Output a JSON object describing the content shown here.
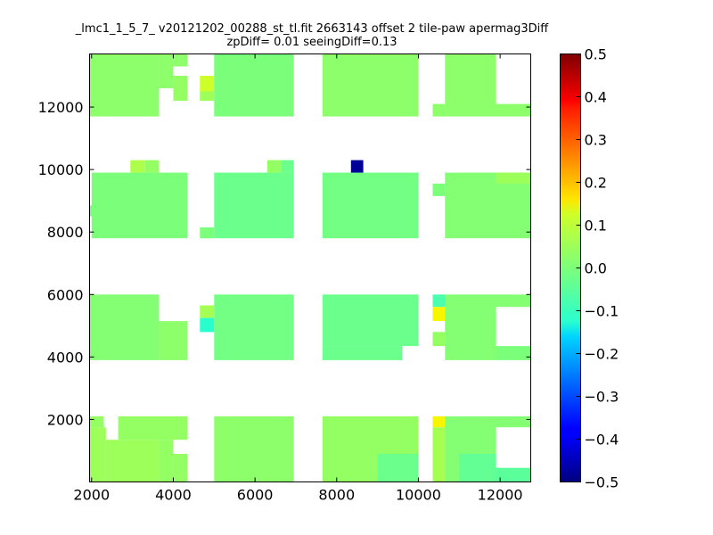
{
  "chart_data": {
    "type": "heatmap",
    "title": "_lmc1_1_5_7_ v20121202_00288_st_tl.fit 2663143 offset 2 tile-paw apermag3Diff",
    "subtitle": "zpDiff= 0.01 seeingDiff=0.13",
    "xlim": [
      1950,
      12750
    ],
    "ylim": [
      0,
      13700
    ],
    "x_ticks": [
      2000,
      4000,
      6000,
      8000,
      10000,
      12000
    ],
    "y_ticks": [
      2000,
      4000,
      6000,
      8000,
      10000,
      12000
    ],
    "colorbar": {
      "min": -0.5,
      "max": 0.5,
      "ticks": [
        "0.5",
        "0.4",
        "0.3",
        "0.2",
        "0.1",
        "0.0",
        "−0.1",
        "−0.2",
        "−0.3",
        "−0.4",
        "−0.5"
      ],
      "colormap": "jet"
    },
    "base_value": 0.0,
    "cells": [
      {
        "x0": 1950,
        "x1": 3650,
        "y0": 11700,
        "y1": 13700,
        "v": 0.02
      },
      {
        "x0": 3650,
        "x1": 4000,
        "y0": 12600,
        "y1": 13700,
        "v": 0.02
      },
      {
        "x0": 4000,
        "x1": 4350,
        "y0": 13300,
        "y1": 13700,
        "v": 0.02
      },
      {
        "x0": 4000,
        "x1": 4350,
        "y0": 12200,
        "y1": 13000,
        "v": 0.03
      },
      {
        "x0": 4650,
        "x1": 5000,
        "y0": 12500,
        "y1": 13000,
        "v": 0.1
      },
      {
        "x0": 4650,
        "x1": 5000,
        "y0": 12200,
        "y1": 12500,
        "v": 0.04
      },
      {
        "x0": 5000,
        "x1": 6950,
        "y0": 11700,
        "y1": 13700,
        "v": 0.0
      },
      {
        "x0": 7650,
        "x1": 10000,
        "y0": 11700,
        "y1": 13700,
        "v": 0.02
      },
      {
        "x0": 10650,
        "x1": 11900,
        "y0": 11700,
        "y1": 13700,
        "v": 0.02
      },
      {
        "x0": 10350,
        "x1": 10650,
        "y0": 11700,
        "y1": 12100,
        "v": 0.02
      },
      {
        "x0": 11900,
        "x1": 12750,
        "y0": 11700,
        "y1": 12100,
        "v": 0.02
      },
      {
        "x0": 2000,
        "x1": 4350,
        "y0": 7800,
        "y1": 9900,
        "v": 0.0
      },
      {
        "x0": 1950,
        "x1": 2350,
        "y0": 8500,
        "y1": 8850,
        "v": 0.0
      },
      {
        "x0": 2950,
        "x1": 3300,
        "y0": 9900,
        "y1": 10300,
        "v": 0.06
      },
      {
        "x0": 3300,
        "x1": 3650,
        "y0": 9900,
        "y1": 10300,
        "v": 0.03
      },
      {
        "x0": 4650,
        "x1": 5000,
        "y0": 7800,
        "y1": 8150,
        "v": 0.0
      },
      {
        "x0": 5000,
        "x1": 6950,
        "y0": 7800,
        "y1": 9900,
        "v": -0.02
      },
      {
        "x0": 6300,
        "x1": 6650,
        "y0": 9900,
        "y1": 10300,
        "v": 0.03
      },
      {
        "x0": 6650,
        "x1": 6950,
        "y0": 9900,
        "y1": 10300,
        "v": -0.02
      },
      {
        "x0": 7650,
        "x1": 10000,
        "y0": 7800,
        "y1": 9900,
        "v": -0.01
      },
      {
        "x0": 8350,
        "x1": 8650,
        "y0": 9900,
        "y1": 10300,
        "v": -0.45
      },
      {
        "x0": 10350,
        "x1": 10650,
        "y0": 9150,
        "y1": 9550,
        "v": 0.0
      },
      {
        "x0": 10650,
        "x1": 12750,
        "y0": 7800,
        "y1": 9900,
        "v": 0.01
      },
      {
        "x0": 11900,
        "x1": 12750,
        "y0": 9550,
        "y1": 9900,
        "v": 0.04
      },
      {
        "x0": 1950,
        "x1": 3650,
        "y0": 3900,
        "y1": 6000,
        "v": 0.01
      },
      {
        "x0": 3650,
        "x1": 4350,
        "y0": 3900,
        "y1": 5150,
        "v": 0.02
      },
      {
        "x0": 4650,
        "x1": 5000,
        "y0": 5250,
        "y1": 5650,
        "v": 0.05
      },
      {
        "x0": 4650,
        "x1": 5000,
        "y0": 4800,
        "y1": 5250,
        "v": -0.1
      },
      {
        "x0": 5000,
        "x1": 6950,
        "y0": 3900,
        "y1": 6000,
        "v": -0.01
      },
      {
        "x0": 7650,
        "x1": 10000,
        "y0": 4350,
        "y1": 6000,
        "v": -0.02
      },
      {
        "x0": 7650,
        "x1": 9600,
        "y0": 3900,
        "y1": 4350,
        "v": -0.02
      },
      {
        "x0": 10350,
        "x1": 10650,
        "y0": 5600,
        "y1": 6000,
        "v": -0.06
      },
      {
        "x0": 10350,
        "x1": 10650,
        "y0": 5150,
        "y1": 5600,
        "v": 0.15
      },
      {
        "x0": 10350,
        "x1": 10650,
        "y0": 4350,
        "y1": 4800,
        "v": 0.03
      },
      {
        "x0": 10650,
        "x1": 11900,
        "y0": 3900,
        "y1": 6000,
        "v": 0.01
      },
      {
        "x0": 11900,
        "x1": 12750,
        "y0": 5600,
        "y1": 6000,
        "v": 0.01
      },
      {
        "x0": 11900,
        "x1": 12750,
        "y0": 3900,
        "y1": 4350,
        "v": 0.0
      },
      {
        "x0": 1950,
        "x1": 2350,
        "y0": 0,
        "y1": 1750,
        "v": 0.04
      },
      {
        "x0": 1950,
        "x1": 2300,
        "y0": 1750,
        "y1": 2100,
        "v": 0.03
      },
      {
        "x0": 2650,
        "x1": 4350,
        "y0": 1350,
        "y1": 2100,
        "v": 0.03
      },
      {
        "x0": 2350,
        "x1": 3650,
        "y0": 0,
        "y1": 1350,
        "v": 0.04
      },
      {
        "x0": 3650,
        "x1": 4000,
        "y0": 0,
        "y1": 1350,
        "v": 0.03
      },
      {
        "x0": 4000,
        "x1": 4350,
        "y0": 0,
        "y1": 900,
        "v": 0.03
      },
      {
        "x0": 5000,
        "x1": 6950,
        "y0": 0,
        "y1": 2100,
        "v": 0.02
      },
      {
        "x0": 7650,
        "x1": 10000,
        "y0": 0,
        "y1": 2100,
        "v": 0.03
      },
      {
        "x0": 9000,
        "x1": 10000,
        "y0": 0,
        "y1": 900,
        "v": -0.02
      },
      {
        "x0": 10350,
        "x1": 10650,
        "y0": 1750,
        "y1": 2100,
        "v": 0.15
      },
      {
        "x0": 10350,
        "x1": 10650,
        "y0": 0,
        "y1": 1750,
        "v": 0.05
      },
      {
        "x0": 10650,
        "x1": 11900,
        "y0": 0,
        "y1": 2100,
        "v": 0.01
      },
      {
        "x0": 11000,
        "x1": 11900,
        "y0": 0,
        "y1": 900,
        "v": -0.03
      },
      {
        "x0": 11900,
        "x1": 12750,
        "y0": 1750,
        "y1": 2100,
        "v": 0.01
      },
      {
        "x0": 11900,
        "x1": 12750,
        "y0": 0,
        "y1": 450,
        "v": -0.04
      }
    ]
  }
}
